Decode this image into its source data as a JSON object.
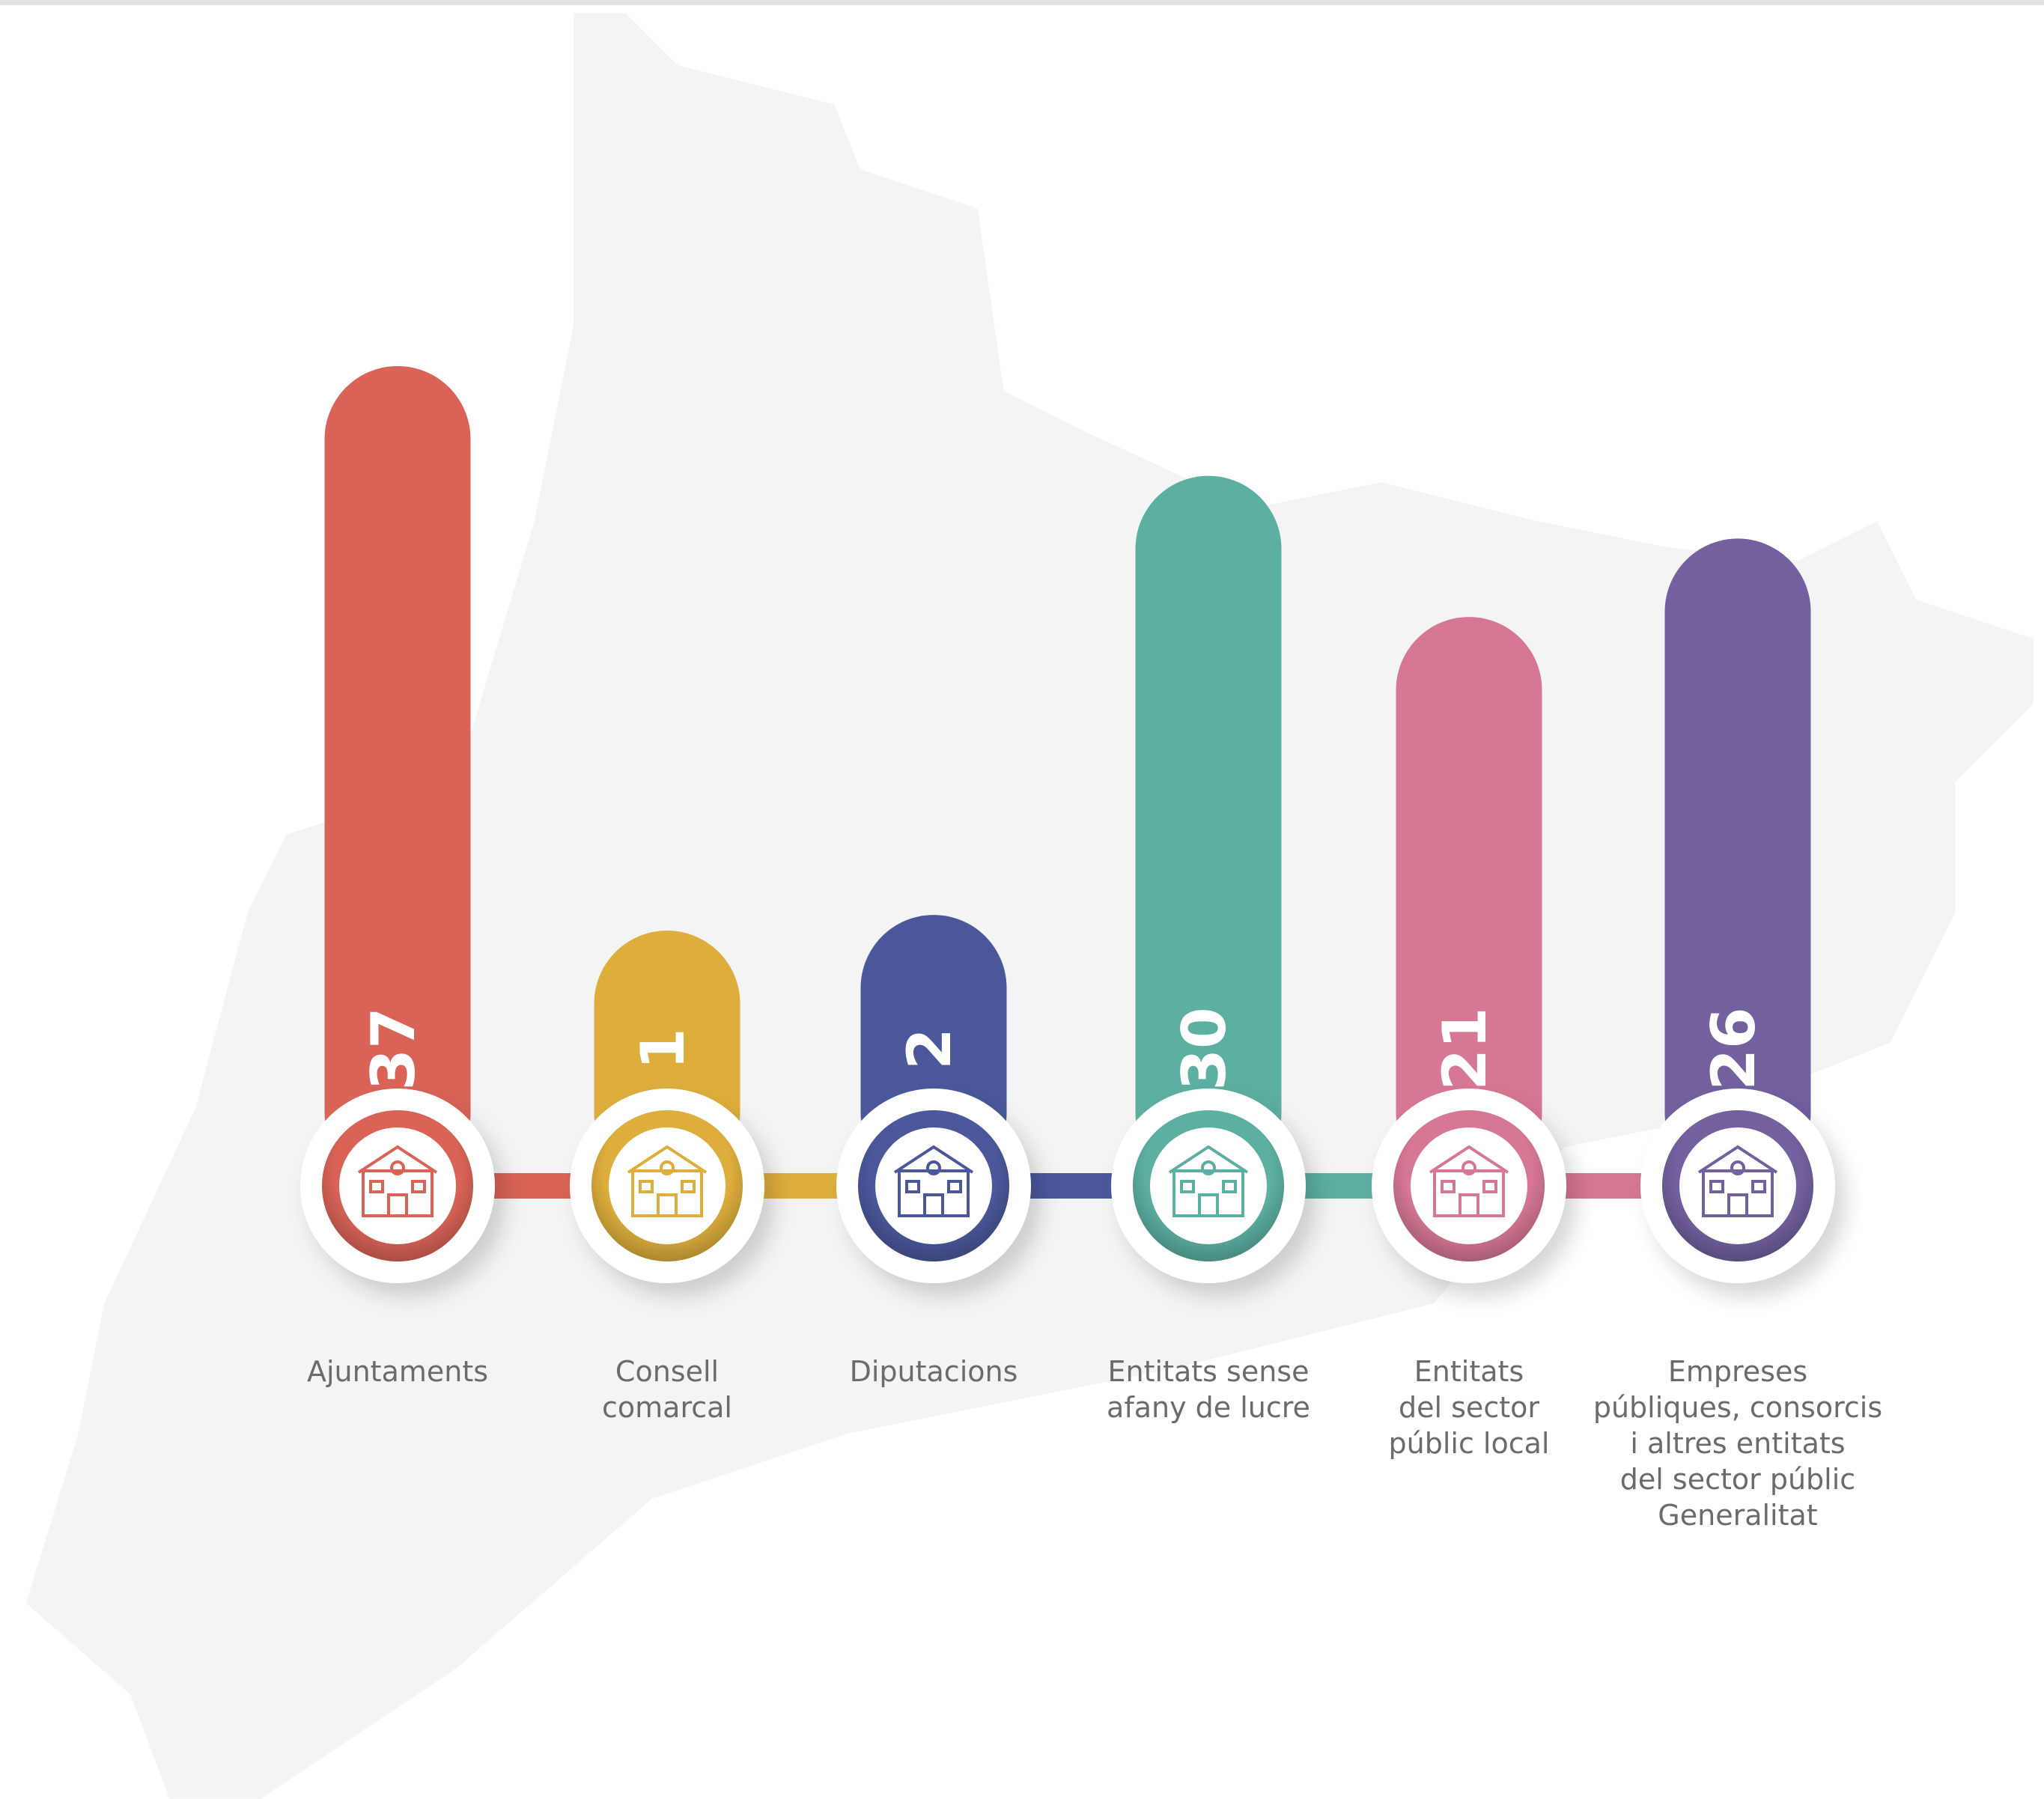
{
  "chart_data": {
    "type": "bar",
    "categories": [
      "Ajuntaments",
      "Consell\ncomarcal",
      "Diputacions",
      "Entitats sense\nafany de lucre",
      "Entitats\ndel sector\npúblic local",
      "Empreses\npúbliques, consorcis\ni altres entitats\ndel sector públic\nGeneralitat"
    ],
    "values": [
      37,
      1,
      2,
      30,
      21,
      26
    ],
    "colors": [
      "#d96357",
      "#ddae3c",
      "#4a589b",
      "#5cb0a1",
      "#d67793",
      "#72609f"
    ]
  }
}
